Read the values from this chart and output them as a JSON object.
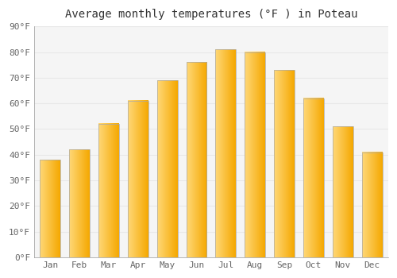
{
  "title": "Average monthly temperatures (°F ) in Poteau",
  "months": [
    "Jan",
    "Feb",
    "Mar",
    "Apr",
    "May",
    "Jun",
    "Jul",
    "Aug",
    "Sep",
    "Oct",
    "Nov",
    "Dec"
  ],
  "values": [
    38,
    42,
    52,
    61,
    69,
    76,
    81,
    80,
    73,
    62,
    51,
    41
  ],
  "bar_color_left": "#FFD878",
  "bar_color_right": "#F5A800",
  "bar_edge_color": "#aaaaaa",
  "ylim": [
    0,
    90
  ],
  "yticks": [
    0,
    10,
    20,
    30,
    40,
    50,
    60,
    70,
    80,
    90
  ],
  "ytick_labels": [
    "0°F",
    "10°F",
    "20°F",
    "30°F",
    "40°F",
    "50°F",
    "60°F",
    "70°F",
    "80°F",
    "90°F"
  ],
  "background_color": "#ffffff",
  "plot_bg_color": "#f5f5f5",
  "grid_color": "#e8e8e8",
  "title_fontsize": 10,
  "tick_fontsize": 8,
  "bar_width": 0.7
}
